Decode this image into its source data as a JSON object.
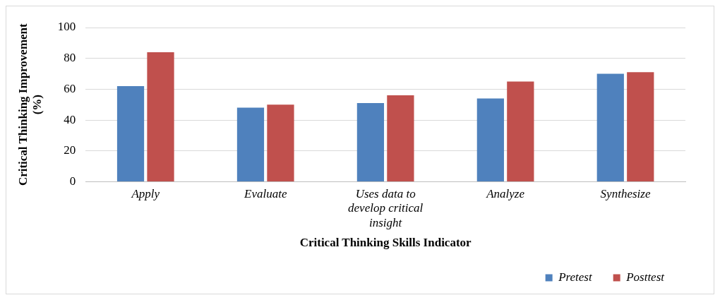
{
  "chart_data": {
    "type": "bar",
    "xlabel": "Critical Thinking Skills Indicator",
    "ylabel": "Critical Thinking Improvement (%)",
    "categories": [
      "Apply",
      "Evaluate",
      "Uses data to develop critical insight",
      "Analyze",
      "Synthesize"
    ],
    "series": [
      {
        "name": "Pretest",
        "color": "#4f81bd",
        "values": [
          62,
          48,
          51,
          54,
          70
        ]
      },
      {
        "name": "Posttest",
        "color": "#c0504d",
        "values": [
          84,
          50,
          56,
          65,
          71
        ]
      }
    ],
    "ylim": [
      0,
      100
    ],
    "yticks": [
      0,
      20,
      40,
      60,
      80,
      100
    ],
    "grid": "y",
    "legend": "bottom right"
  }
}
